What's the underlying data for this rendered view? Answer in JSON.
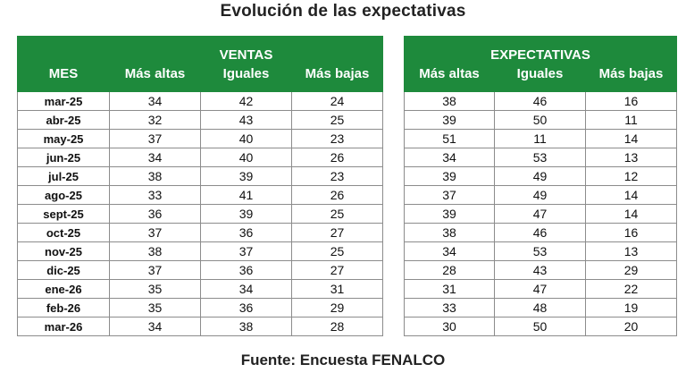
{
  "title": "Evolución de las expectativas",
  "source": "Fuente: Encuesta FENALCO",
  "ventas": {
    "group_label": "VENTAS",
    "col_mes": "MES",
    "col_altas": "Más altas",
    "col_iguales": "Iguales",
    "col_bajas": "Más bajas",
    "rows": [
      {
        "mes": "mar-25",
        "altas": "34",
        "iguales": "42",
        "bajas": "24"
      },
      {
        "mes": "abr-25",
        "altas": "32",
        "iguales": "43",
        "bajas": "25"
      },
      {
        "mes": "may-25",
        "altas": "37",
        "iguales": "40",
        "bajas": "23"
      },
      {
        "mes": "jun-25",
        "altas": "34",
        "iguales": "40",
        "bajas": "26"
      },
      {
        "mes": "jul-25",
        "altas": "38",
        "iguales": "39",
        "bajas": "23"
      },
      {
        "mes": "ago-25",
        "altas": "33",
        "iguales": "41",
        "bajas": "26"
      },
      {
        "mes": "sept-25",
        "altas": "36",
        "iguales": "39",
        "bajas": "25"
      },
      {
        "mes": "oct-25",
        "altas": "37",
        "iguales": "36",
        "bajas": "27"
      },
      {
        "mes": "nov-25",
        "altas": "38",
        "iguales": "37",
        "bajas": "25"
      },
      {
        "mes": "dic-25",
        "altas": "37",
        "iguales": "36",
        "bajas": "27"
      },
      {
        "mes": "ene-26",
        "altas": "35",
        "iguales": "34",
        "bajas": "31"
      },
      {
        "mes": "feb-26",
        "altas": "35",
        "iguales": "36",
        "bajas": "29"
      },
      {
        "mes": "mar-26",
        "altas": "34",
        "iguales": "38",
        "bajas": "28"
      }
    ]
  },
  "expectativas": {
    "group_label": "EXPECTATIVAS",
    "col_altas": "Más altas",
    "col_iguales": "Iguales",
    "col_bajas": "Más bajas",
    "rows": [
      {
        "altas": "38",
        "iguales": "46",
        "bajas": "16"
      },
      {
        "altas": "39",
        "iguales": "50",
        "bajas": "11"
      },
      {
        "altas": "51",
        "iguales": "11",
        "bajas": "14"
      },
      {
        "altas": "34",
        "iguales": "53",
        "bajas": "13"
      },
      {
        "altas": "39",
        "iguales": "49",
        "bajas": "12"
      },
      {
        "altas": "37",
        "iguales": "49",
        "bajas": "14"
      },
      {
        "altas": "39",
        "iguales": "47",
        "bajas": "14"
      },
      {
        "altas": "38",
        "iguales": "46",
        "bajas": "16"
      },
      {
        "altas": "34",
        "iguales": "53",
        "bajas": "13"
      },
      {
        "altas": "28",
        "iguales": "43",
        "bajas": "29"
      },
      {
        "altas": "31",
        "iguales": "47",
        "bajas": "22"
      },
      {
        "altas": "33",
        "iguales": "48",
        "bajas": "19"
      },
      {
        "altas": "30",
        "iguales": "50",
        "bajas": "20"
      }
    ]
  },
  "colors": {
    "header_green": "#1e8a3c",
    "header_text": "#ffffff",
    "grid": "#8c8c8c"
  }
}
